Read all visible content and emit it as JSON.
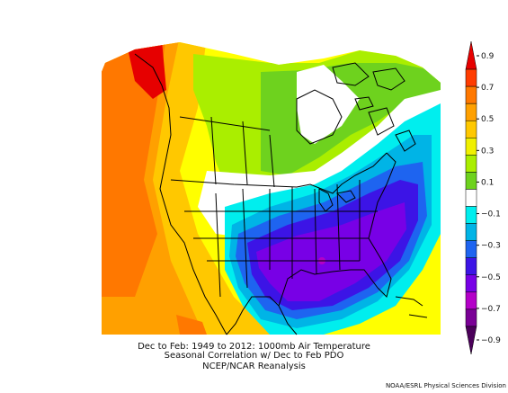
{
  "map": {
    "caption_line1": "Dec to Feb: 1949 to 2012: 1000mb Air Temperature",
    "caption_line2": "Seasonal Correlation w/ Dec to Feb PDO",
    "caption_line3": "NCEP/NCAR Reanalysis",
    "credit": "NOAA/ESRL Physical Sciences Division",
    "region": "North America"
  },
  "colorbar": {
    "ticks": [
      "0.9",
      "0.7",
      "0.5",
      "0.3",
      "0.1",
      "−0.1",
      "−0.3",
      "−0.5",
      "−0.7",
      "−0.9"
    ],
    "bins": [
      {
        "range": "0.8 to 0.9",
        "color": "#e60000"
      },
      {
        "range": "0.7 to 0.8",
        "color": "#ff3c00"
      },
      {
        "range": "0.6 to 0.7",
        "color": "#ff7800"
      },
      {
        "range": "0.5 to 0.6",
        "color": "#ffa000"
      },
      {
        "range": "0.4 to 0.5",
        "color": "#ffc800"
      },
      {
        "range": "0.3 to 0.4",
        "color": "#f0f000"
      },
      {
        "range": "0.2 to 0.3",
        "color": "#aaee00"
      },
      {
        "range": "0.1 to 0.2",
        "color": "#6ed21e"
      },
      {
        "range": "-0.1 to 0.1",
        "color": "#ffffff"
      },
      {
        "range": "-0.2 to -0.1",
        "color": "#00eeee"
      },
      {
        "range": "-0.3 to -0.2",
        "color": "#00b4e6"
      },
      {
        "range": "-0.4 to -0.3",
        "color": "#1e64f0"
      },
      {
        "range": "-0.5 to -0.4",
        "color": "#3c14e6"
      },
      {
        "range": "-0.6 to -0.5",
        "color": "#7800e6"
      },
      {
        "range": "-0.7 to -0.6",
        "color": "#b400c8"
      },
      {
        "range": "-0.8 to -0.7",
        "color": "#7a0096"
      },
      {
        "range": "-0.9 to -0.8",
        "color": "#4b005a"
      }
    ]
  }
}
